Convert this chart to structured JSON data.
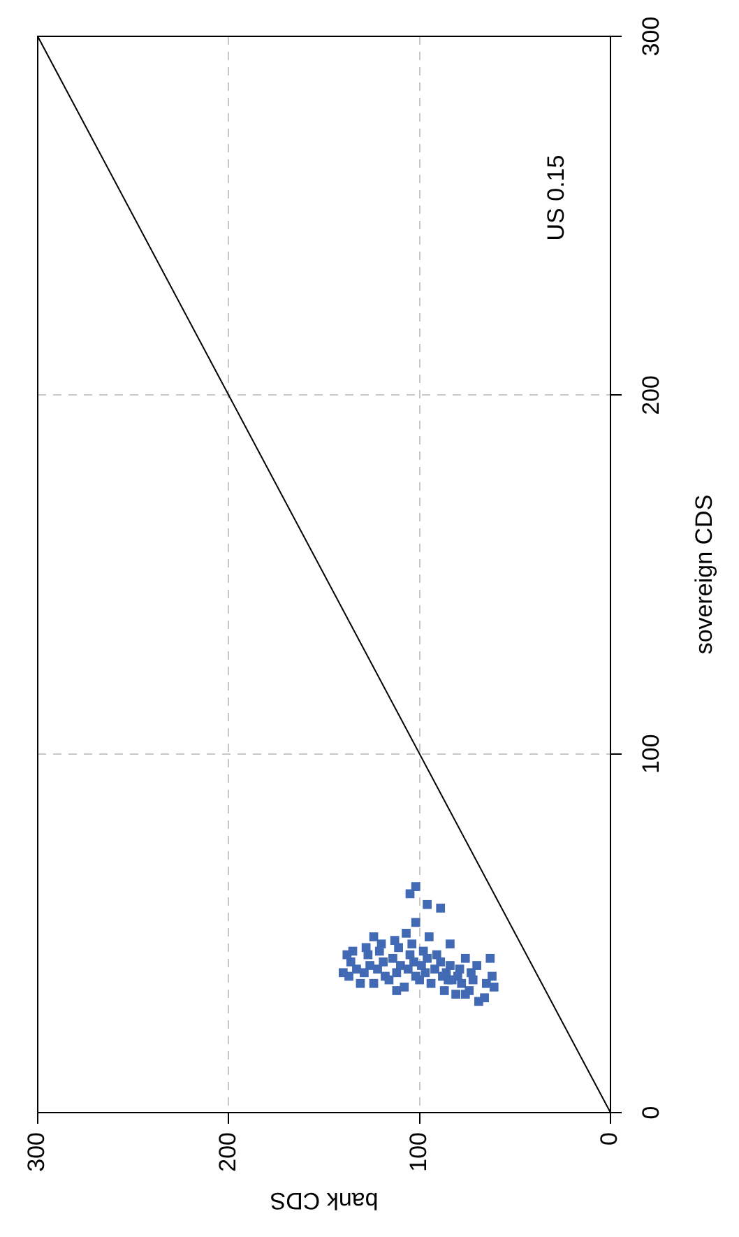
{
  "chart_data": {
    "type": "scatter",
    "xlabel": "bank CDS",
    "ylabel": "sovereign CDS",
    "xlim": [
      300,
      0
    ],
    "ylim": [
      0,
      300
    ],
    "xticks": [
      300,
      200,
      100,
      0
    ],
    "yticks": [
      0,
      100,
      200,
      300
    ],
    "grid": true,
    "legend": false,
    "annotations": [
      "US 0.15"
    ],
    "series": [
      {
        "color": "#4169b4",
        "marker": "square",
        "values": [
          63,
          61,
          58,
          57,
          53,
          49,
          44,
          39,
          36,
          34,
          37,
          37,
          33,
          31,
          35,
          43,
          43,
          47,
          49,
          45,
          42,
          40,
          38,
          46,
          44,
          41,
          39,
          47,
          45,
          42,
          40,
          38,
          36,
          48,
          46,
          43,
          41,
          39,
          37,
          50,
          47,
          44,
          42,
          40,
          38,
          35,
          45,
          43,
          41,
          39,
          36,
          44,
          42,
          40,
          38,
          41,
          39,
          37,
          34,
          40,
          38,
          36,
          33,
          39,
          41,
          37,
          34,
          32,
          36,
          38
        ],
        "x": [
          102,
          105,
          96,
          89,
          102,
          124,
          138,
          140,
          131,
          112,
          100,
          85,
          76,
          69,
          61,
          63,
          76,
          84,
          95,
          135,
          136,
          133,
          137,
          128,
          127,
          126,
          129,
          120,
          121,
          119,
          122,
          118,
          124,
          113,
          111,
          114,
          110,
          112,
          116,
          107,
          104,
          105,
          103,
          106,
          102,
          108,
          98,
          96,
          99,
          97,
          94,
          91,
          89,
          92,
          88,
          84,
          86,
          83,
          87,
          79,
          80,
          78,
          81,
          73,
          70,
          72,
          74,
          66,
          65,
          62
        ]
      },
      {
        "type": "line",
        "marker": "none",
        "color": "#000000",
        "x": [
          0,
          300
        ],
        "values": [
          0,
          300
        ]
      }
    ]
  }
}
